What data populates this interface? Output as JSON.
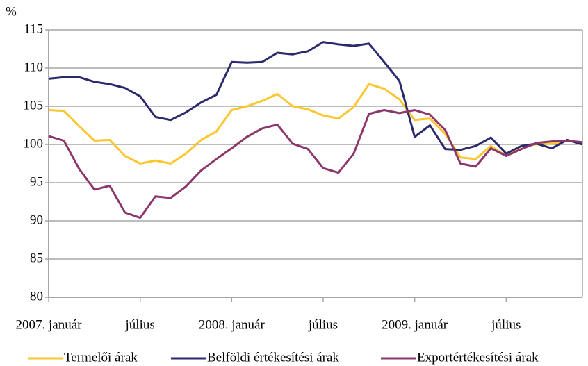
{
  "chart_data": {
    "type": "line",
    "y_label": "%",
    "categories": [
      "2007. január",
      null,
      null,
      null,
      null,
      null,
      "július",
      null,
      null,
      null,
      null,
      null,
      "2008. január",
      null,
      null,
      null,
      null,
      null,
      "július",
      null,
      null,
      null,
      null,
      null,
      "2009. január",
      null,
      null,
      null,
      null,
      null,
      "július",
      null,
      null,
      null,
      null,
      null
    ],
    "series": [
      {
        "name": "Termelői árak",
        "color": "#fcc62d",
        "values": [
          104.5,
          104.4,
          102.4,
          100.5,
          100.6,
          98.5,
          97.5,
          97.9,
          97.5,
          98.8,
          100.6,
          101.7,
          104.5,
          105.0,
          105.7,
          106.6,
          105.0,
          104.6,
          103.8,
          103.4,
          104.9,
          107.9,
          107.3,
          105.9,
          103.2,
          103.4,
          101.4,
          98.3,
          98.1,
          99.8,
          98.5,
          99.8,
          100.0,
          100.1,
          100.5,
          100.1
        ]
      },
      {
        "name": "Belföldi értékesítési árak",
        "color": "#2a2a6c",
        "values": [
          108.6,
          108.8,
          108.8,
          108.2,
          107.9,
          107.4,
          106.3,
          103.6,
          103.2,
          104.2,
          105.5,
          106.5,
          110.8,
          110.7,
          110.8,
          112.0,
          111.8,
          112.2,
          113.4,
          113.1,
          112.9,
          113.2,
          110.8,
          108.3,
          101.0,
          102.5,
          99.4,
          99.3,
          99.8,
          100.9,
          98.8,
          99.8,
          100.1,
          99.5,
          100.6,
          100.0
        ]
      },
      {
        "name": "Exportértékesítési árak",
        "color": "#8c376c",
        "values": [
          101.1,
          100.5,
          96.8,
          94.1,
          94.6,
          91.1,
          90.4,
          93.2,
          93.0,
          94.5,
          96.6,
          98.1,
          99.5,
          101.0,
          102.1,
          102.6,
          100.1,
          99.4,
          96.9,
          96.3,
          98.8,
          104.0,
          104.5,
          104.1,
          104.5,
          103.9,
          101.9,
          97.5,
          97.1,
          99.5,
          98.5,
          99.4,
          100.2,
          100.4,
          100.5,
          100.3
        ]
      }
    ],
    "ylim": [
      80,
      115
    ],
    "yticks": [
      80,
      85,
      90,
      95,
      100,
      105,
      110,
      115
    ],
    "grid": true,
    "legend": "bottom"
  }
}
